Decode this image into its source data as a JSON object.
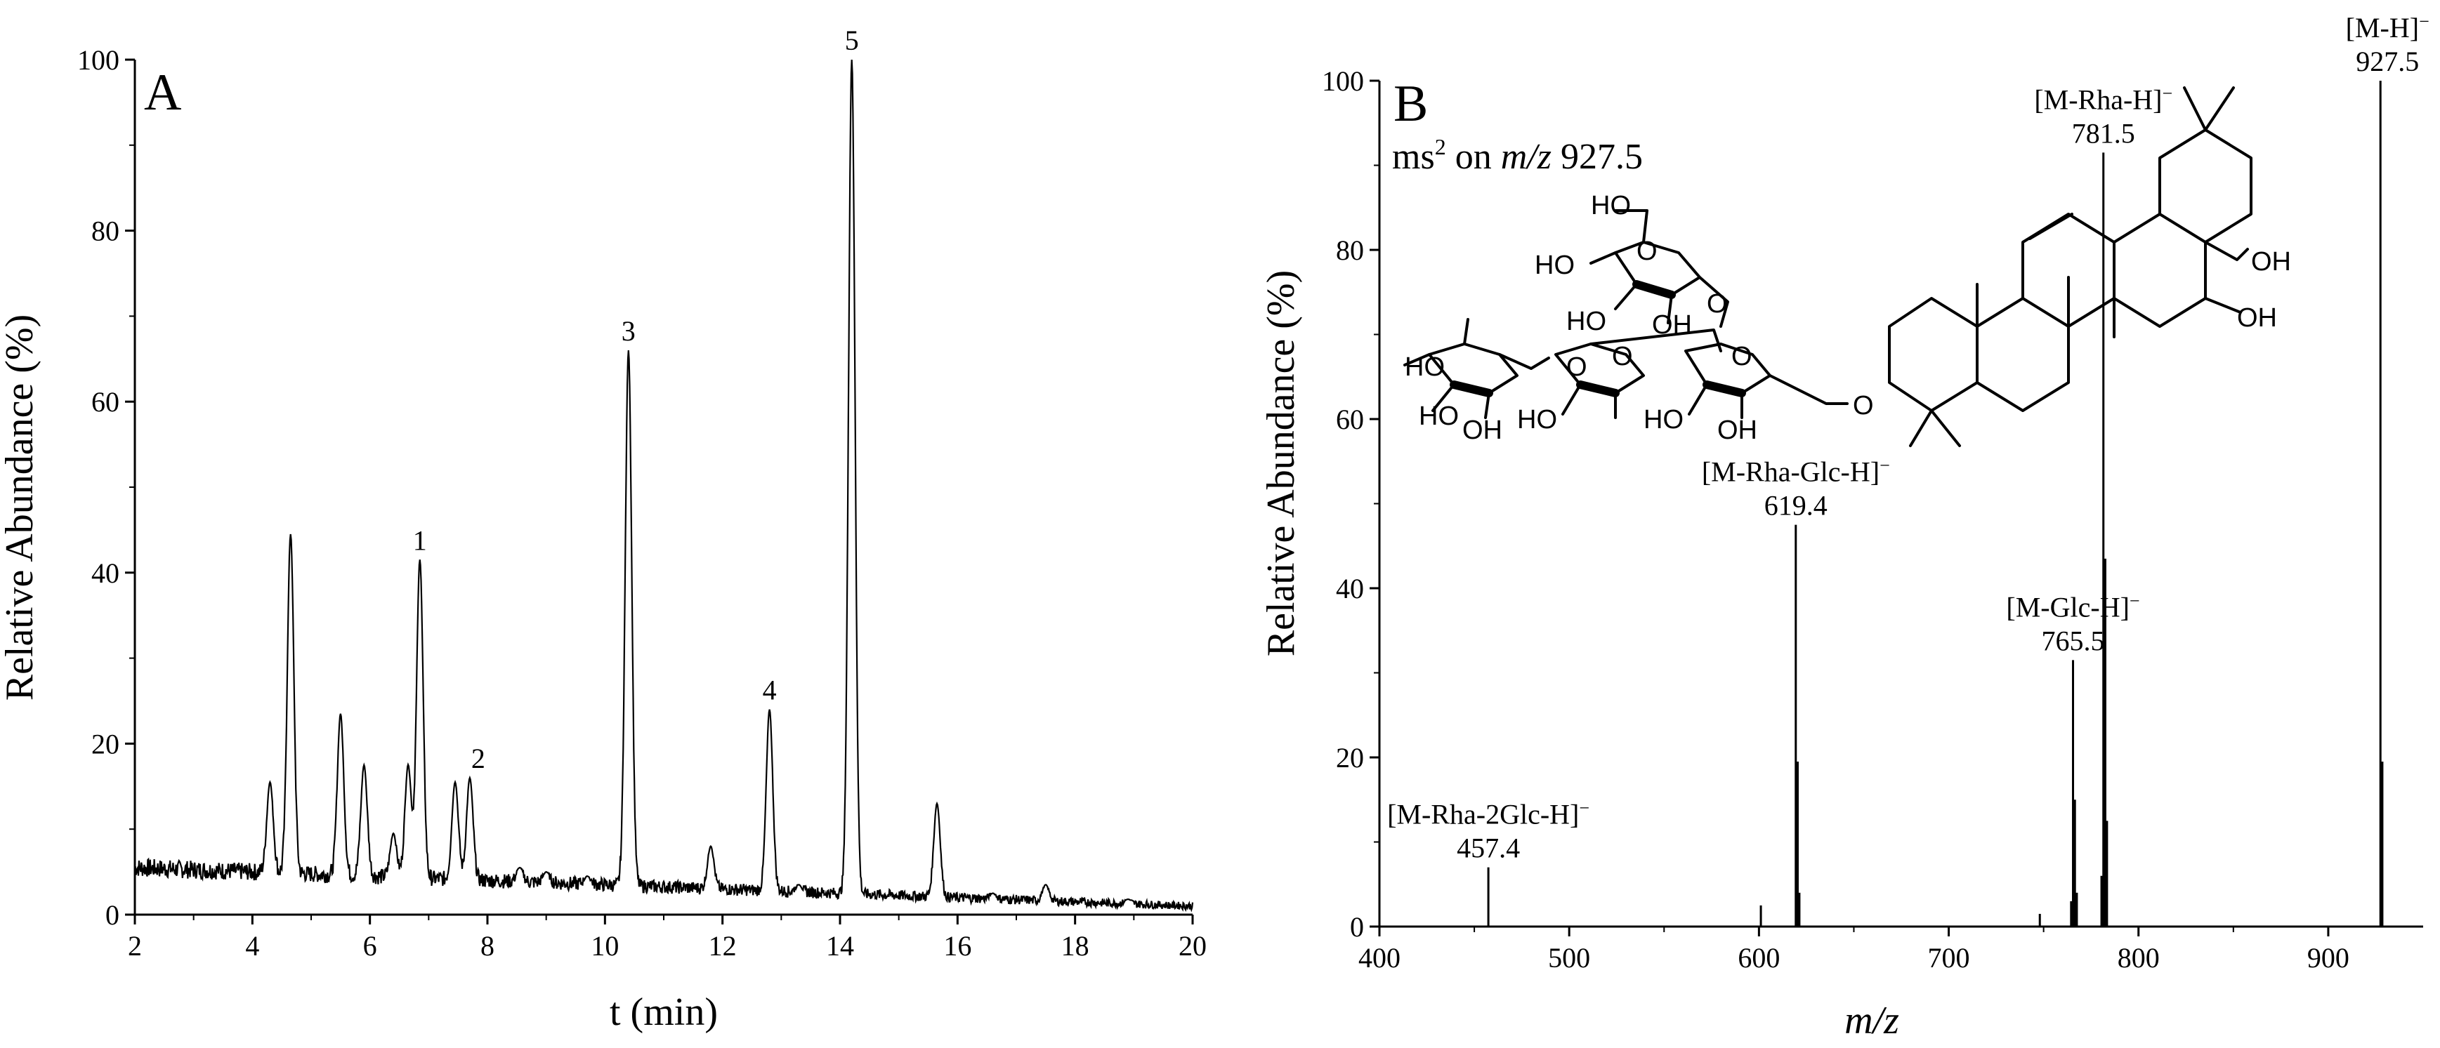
{
  "chart_data": [
    {
      "type": "line",
      "panel_label": "A",
      "xlabel": "t (min)",
      "ylabel": "Relative Abundance (%)",
      "xlim": [
        2,
        20
      ],
      "ylim": [
        0,
        100
      ],
      "xticks": [
        "2",
        "4",
        "6",
        "8",
        "10",
        "12",
        "14",
        "16",
        "18",
        "20"
      ],
      "yticks": [
        "0",
        "20",
        "40",
        "60",
        "80",
        "100"
      ],
      "baseline_noise_start": 5.5,
      "baseline_noise_end": 1.0,
      "peaks": [
        {
          "t": 4.3,
          "h": 15.5,
          "label": ""
        },
        {
          "t": 4.65,
          "h": 44.5,
          "label": ""
        },
        {
          "t": 5.5,
          "h": 23.5,
          "label": ""
        },
        {
          "t": 5.9,
          "h": 17.5,
          "label": ""
        },
        {
          "t": 6.4,
          "h": 9.5,
          "label": ""
        },
        {
          "t": 6.65,
          "h": 17.5,
          "label": ""
        },
        {
          "t": 6.85,
          "h": 41.5,
          "label": "1"
        },
        {
          "t": 7.45,
          "h": 15.5,
          "label": ""
        },
        {
          "t": 7.7,
          "h": 16.0,
          "label": "2"
        },
        {
          "t": 8.55,
          "h": 5.5,
          "label": ""
        },
        {
          "t": 9.0,
          "h": 5.0,
          "label": ""
        },
        {
          "t": 9.7,
          "h": 4.5,
          "label": ""
        },
        {
          "t": 10.4,
          "h": 66.0,
          "label": "3"
        },
        {
          "t": 11.8,
          "h": 8.0,
          "label": ""
        },
        {
          "t": 12.8,
          "h": 24.0,
          "label": "4"
        },
        {
          "t": 13.3,
          "h": 3.5,
          "label": ""
        },
        {
          "t": 14.2,
          "h": 100.0,
          "label": "5"
        },
        {
          "t": 15.65,
          "h": 13.0,
          "label": ""
        },
        {
          "t": 16.6,
          "h": 2.5,
          "label": ""
        },
        {
          "t": 17.5,
          "h": 3.5,
          "label": ""
        },
        {
          "t": 18.9,
          "h": 1.8,
          "label": ""
        }
      ]
    },
    {
      "type": "bar",
      "panel_label": "B",
      "subtitle_prefix": "ms",
      "subtitle_superscript": "2",
      "subtitle_on": " on ",
      "subtitle_mz": "m/z",
      "subtitle_value": " 927.5",
      "xlabel": "m/z",
      "ylabel": "Relative Abundance (%)",
      "xlim": [
        400,
        950
      ],
      "ylim": [
        0,
        100
      ],
      "xticks": [
        "400",
        "500",
        "600",
        "700",
        "800",
        "900"
      ],
      "yticks": [
        "0",
        "20",
        "40",
        "60",
        "80",
        "100"
      ],
      "sticks": [
        {
          "mz": 457.4,
          "value": 7.0
        },
        {
          "mz": 601.0,
          "value": 2.5
        },
        {
          "mz": 619.4,
          "value": 47.5
        },
        {
          "mz": 620.4,
          "value": 19.5
        },
        {
          "mz": 621.3,
          "value": 4.0
        },
        {
          "mz": 748.0,
          "value": 1.5
        },
        {
          "mz": 764.5,
          "value": 3.0
        },
        {
          "mz": 765.5,
          "value": 31.5
        },
        {
          "mz": 766.5,
          "value": 15.0
        },
        {
          "mz": 767.5,
          "value": 4.0
        },
        {
          "mz": 780.5,
          "value": 6.0
        },
        {
          "mz": 781.5,
          "value": 91.5
        },
        {
          "mz": 782.5,
          "value": 43.5
        },
        {
          "mz": 783.4,
          "value": 12.5
        },
        {
          "mz": 927.5,
          "value": 100.0
        },
        {
          "mz": 928.5,
          "value": 19.5
        }
      ],
      "fragments": [
        {
          "ion": "[M-Rha-2Glc-H]",
          "sup": "−",
          "mz": "457.4",
          "at": 457.4,
          "label_top": 7.0
        },
        {
          "ion": "[M-Rha-Glc-H]",
          "sup": "−",
          "mz": "619.4",
          "at": 619.4,
          "label_top": 47.5
        },
        {
          "ion": "[M-Glc-H]",
          "sup": "−",
          "mz": "765.5",
          "at": 765.5,
          "label_top": 31.5
        },
        {
          "ion": "[M-Rha-H]",
          "sup": "−",
          "mz": "781.5",
          "at": 781.5,
          "label_top": 91.5
        },
        {
          "ion": "[M-H]",
          "sup": "−",
          "mz": "927.5",
          "at": 927.5,
          "label_top": 100.0
        }
      ],
      "structure_labels": [
        "HO",
        "HO",
        "HO",
        "HO",
        "HO",
        "HO",
        "HO",
        "OH",
        "OH",
        "OH",
        "OH",
        "OH",
        "O",
        "O",
        "O",
        "O",
        "O",
        "O"
      ]
    }
  ]
}
